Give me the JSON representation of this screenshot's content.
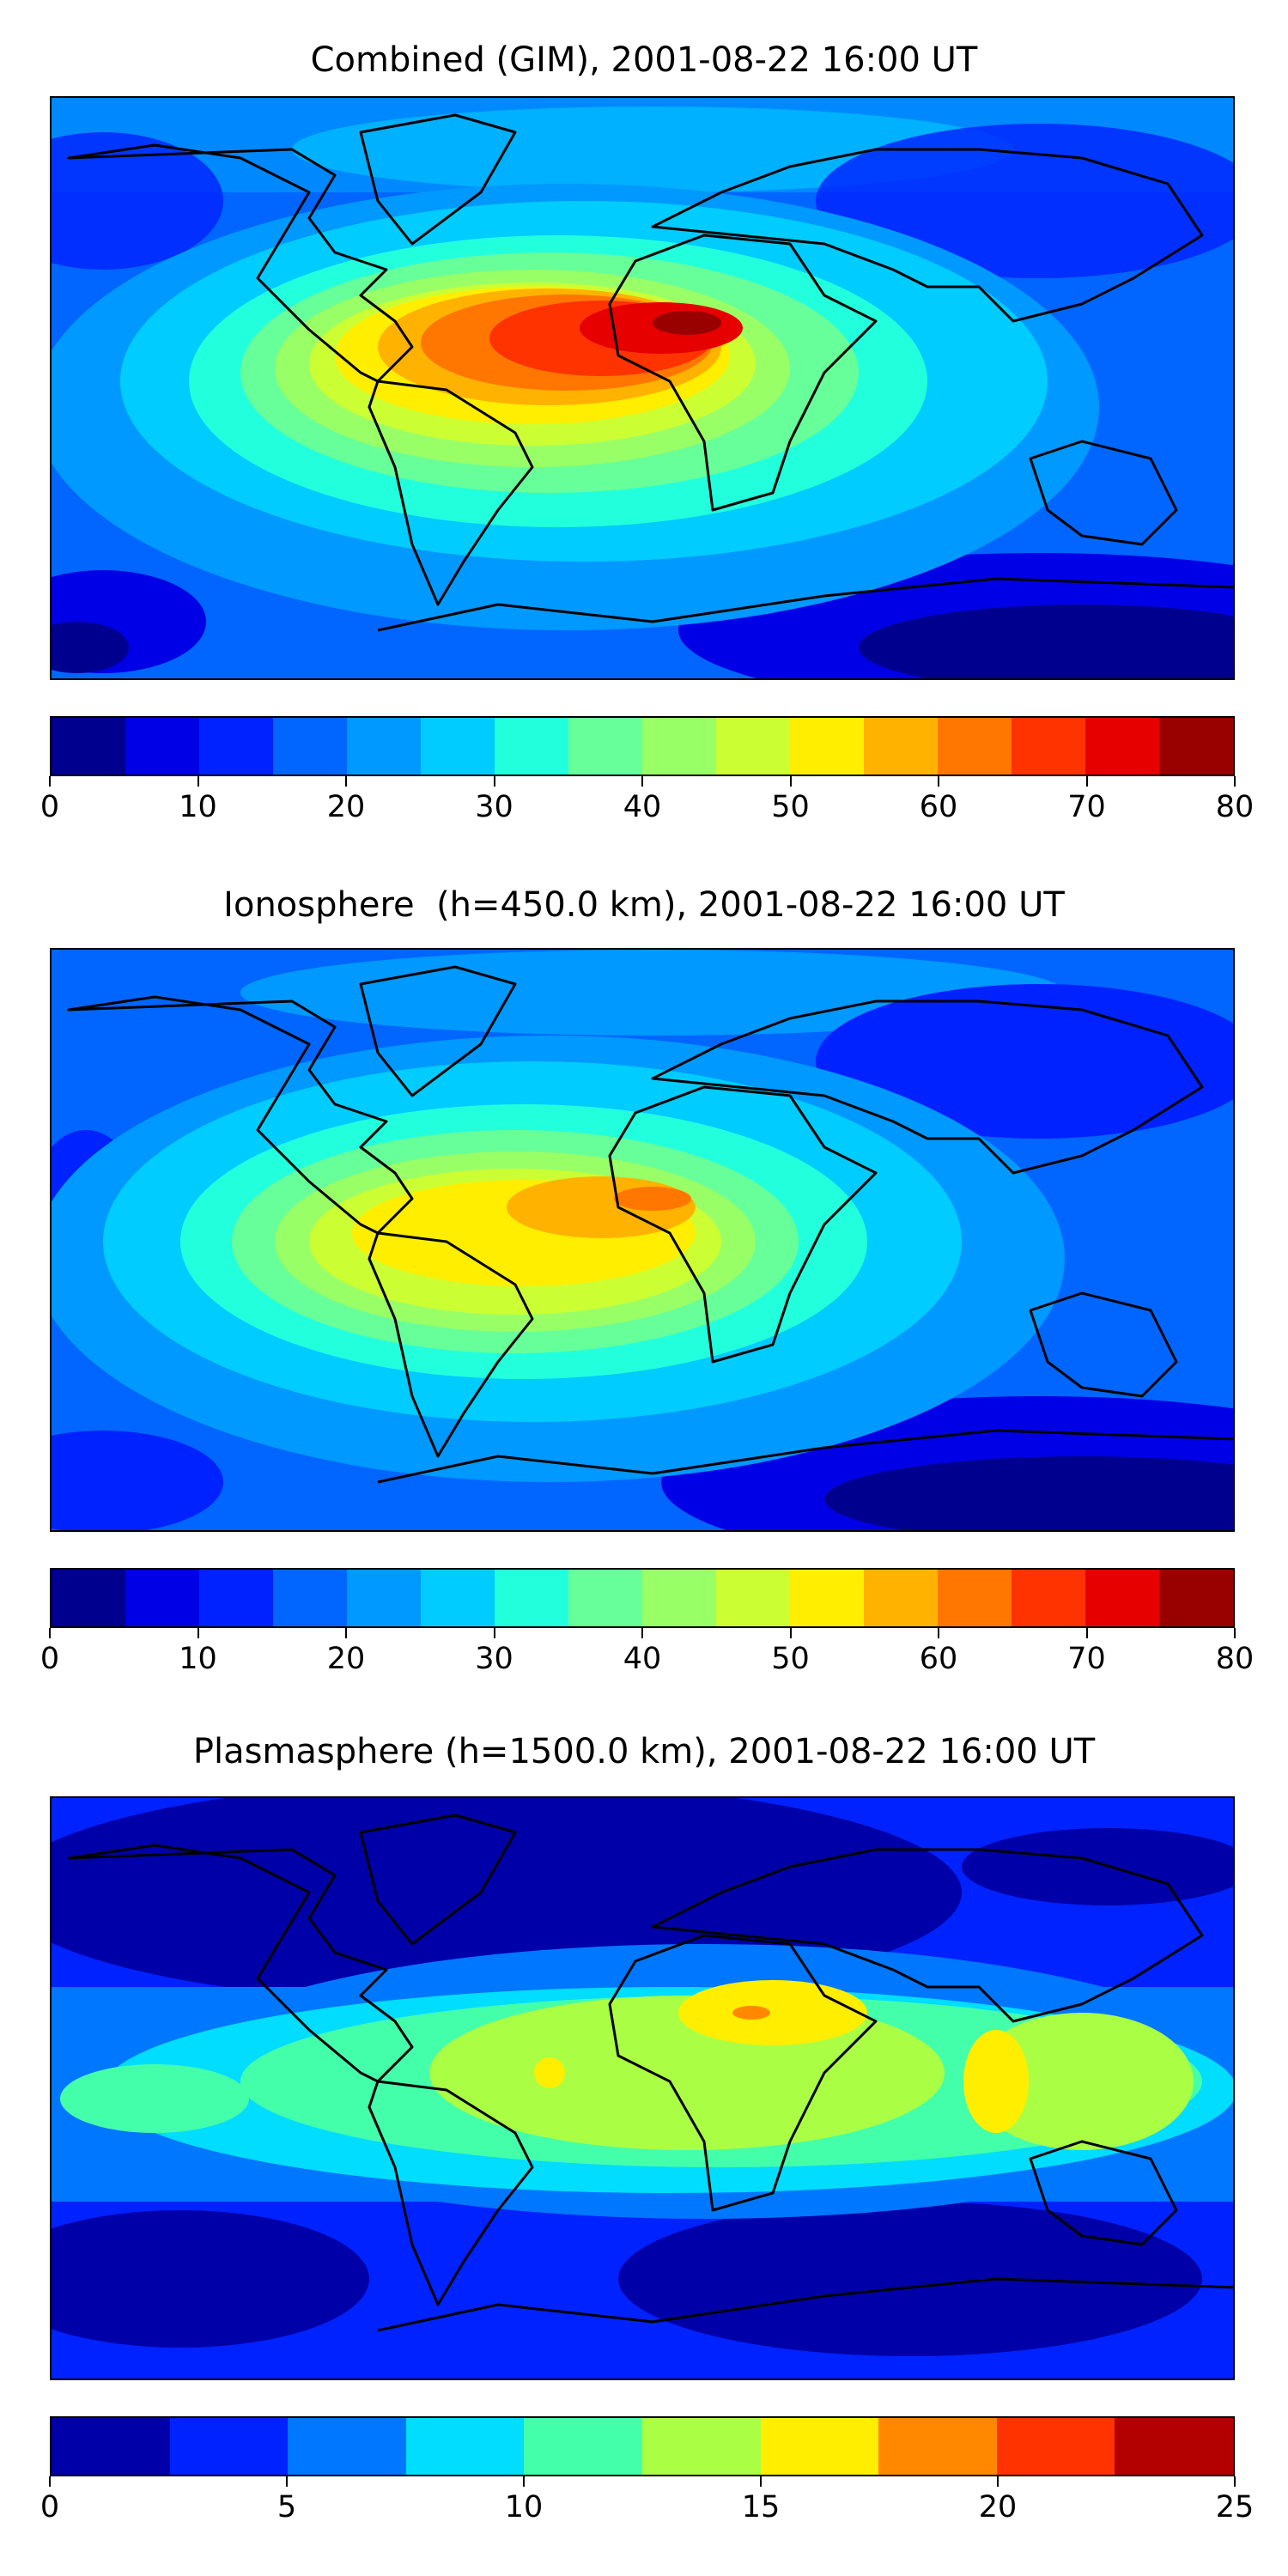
{
  "panels": [
    {
      "title": "Combined (GIM), 2001-08-22 16:00 UT",
      "colorbar": {
        "min": 0,
        "max": 80,
        "ticks": [
          "0",
          "10",
          "20",
          "30",
          "40",
          "50",
          "60",
          "70",
          "80"
        ],
        "colors": [
          "#00008f",
          "#0000e6",
          "#0022ff",
          "#0066ff",
          "#0099ff",
          "#00ccff",
          "#22ffdd",
          "#66ff99",
          "#99ff66",
          "#ccff33",
          "#ffee00",
          "#ffb300",
          "#ff7700",
          "#ff3300",
          "#e60000",
          "#990000"
        ]
      }
    },
    {
      "title": "Ionosphere  (h=450.0 km), 2001-08-22 16:00 UT",
      "colorbar": {
        "min": 0,
        "max": 80,
        "ticks": [
          "0",
          "10",
          "20",
          "30",
          "40",
          "50",
          "60",
          "70",
          "80"
        ],
        "colors": [
          "#00008f",
          "#0000e6",
          "#0022ff",
          "#0066ff",
          "#0099ff",
          "#00ccff",
          "#22ffdd",
          "#66ff99",
          "#99ff66",
          "#ccff33",
          "#ffee00",
          "#ffb300",
          "#ff7700",
          "#ff3300",
          "#e60000",
          "#990000"
        ]
      }
    },
    {
      "title": "Plasmasphere (h=1500.0 km), 2001-08-22 16:00 UT",
      "colorbar": {
        "min": 0,
        "max": 25,
        "ticks": [
          "0",
          "5",
          "10",
          "15",
          "20",
          "25"
        ],
        "colors": [
          "#0000a8",
          "#0022ff",
          "#0077ff",
          "#00ddff",
          "#44ffaa",
          "#aaff44",
          "#ffee00",
          "#ff8800",
          "#ff3300",
          "#b30000"
        ]
      }
    }
  ]
}
